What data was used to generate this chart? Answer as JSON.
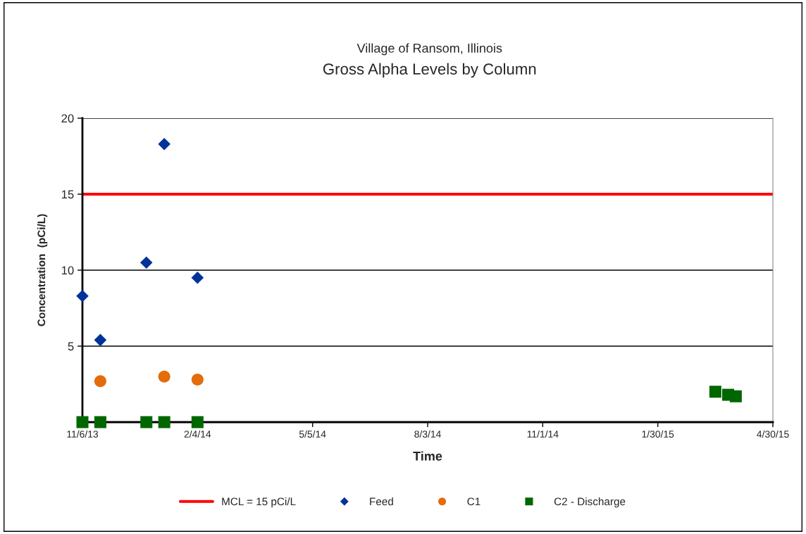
{
  "chart_data": {
    "type": "scatter",
    "title": "Village of Ransom, Illinois",
    "subtitle": "Gross Alpha Levels by Column",
    "xlabel": "Time",
    "ylabel": "Concentration  (pCi/L)",
    "xlim": [
      "2013-11-06",
      "2015-04-30"
    ],
    "xticks": [
      {
        "value": "2013-11-06",
        "label": "11/6/13"
      },
      {
        "value": "2014-02-04",
        "label": "2/4/14"
      },
      {
        "value": "2014-05-05",
        "label": "5/5/14"
      },
      {
        "value": "2014-08-03",
        "label": "8/3/14"
      },
      {
        "value": "2014-11-01",
        "label": "11/1/14"
      },
      {
        "value": "2015-01-30",
        "label": "1/30/15"
      },
      {
        "value": "2015-04-30",
        "label": "4/30/15"
      }
    ],
    "ylim": [
      0,
      20
    ],
    "yticks": [
      {
        "value": 0,
        "label": null
      },
      5,
      10,
      15,
      20
    ],
    "grid": "y",
    "legend": "bottom",
    "ref_lines": [
      {
        "axis": "y",
        "value": 15,
        "label": "MCL = 15 pCi/L",
        "color": "#ff0000",
        "line_style": "solid"
      }
    ],
    "series": [
      {
        "name": "Feed",
        "color": "#003399",
        "marker": "diamond",
        "x": [
          "2013-11-06",
          "2013-11-20",
          "2013-12-26",
          "2014-01-09",
          "2014-02-04"
        ],
        "values": [
          8.3,
          5.4,
          10.5,
          18.3,
          9.5
        ]
      },
      {
        "name": "C1",
        "color": "#e46c0a",
        "marker": "circle",
        "x": [
          "2013-11-20",
          "2014-01-09",
          "2014-02-04"
        ],
        "values": [
          2.7,
          3.0,
          2.8
        ]
      },
      {
        "name": "C2 - Discharge",
        "color": "#006600",
        "marker": "square",
        "x": [
          "2013-11-06",
          "2013-11-20",
          "2013-12-26",
          "2014-01-09",
          "2014-02-04",
          "2015-03-16",
          "2015-03-26",
          "2015-04-01"
        ],
        "values": [
          0,
          0,
          0,
          0,
          0,
          2.0,
          1.8,
          1.7
        ]
      }
    ]
  }
}
